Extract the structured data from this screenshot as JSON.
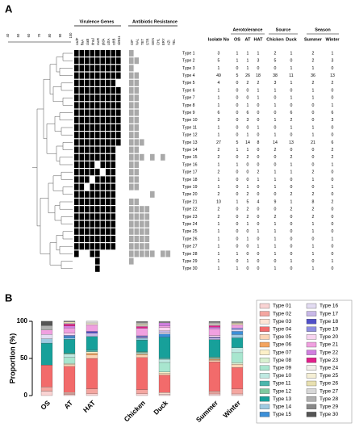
{
  "panel_a": {
    "label": "A",
    "virulence_title": "Virulence Genes",
    "resistance_title": "Antibiotic Resistance",
    "dendrogram_scale": [
      40,
      50,
      60,
      70,
      80,
      90,
      100
    ],
    "genes": [
      "cadF",
      "flaA",
      "ciaB",
      "dnaJ",
      "racR",
      "pldA",
      "cdtA",
      "cdtB",
      "virB11"
    ],
    "antibiotics": [
      "CIP",
      "NAL",
      "TET",
      "STR",
      "GEN",
      "CHL",
      "ERY",
      "AZI",
      "TEL"
    ],
    "types": [
      "Type 1",
      "Type 2",
      "Type 3",
      "Type 4",
      "Type 5",
      "Type 6",
      "Type 7",
      "Type 8",
      "Type 9",
      "Type 10",
      "Type 11",
      "Type 12",
      "Type 13",
      "Type 14",
      "Type 15",
      "Type 16",
      "Type 17",
      "Type 18",
      "Type 19",
      "Type 20",
      "Type 21",
      "Type 22",
      "Type 23",
      "Type 24",
      "Type 25",
      "Type 26",
      "Type 27",
      "Type 28",
      "Type 29",
      "Type 30"
    ],
    "virulence": [
      [
        1,
        1,
        1,
        1,
        1,
        1,
        1,
        1,
        1
      ],
      [
        1,
        1,
        1,
        1,
        1,
        1,
        1,
        1,
        1
      ],
      [
        1,
        1,
        1,
        1,
        1,
        1,
        1,
        1,
        1
      ],
      [
        1,
        1,
        1,
        1,
        1,
        1,
        1,
        1,
        1
      ],
      [
        1,
        1,
        1,
        1,
        1,
        1,
        1,
        1,
        0
      ],
      [
        1,
        1,
        1,
        1,
        1,
        1,
        1,
        1,
        1
      ],
      [
        1,
        1,
        1,
        1,
        1,
        1,
        1,
        1,
        1
      ],
      [
        1,
        1,
        1,
        1,
        1,
        1,
        1,
        1,
        1
      ],
      [
        1,
        1,
        1,
        1,
        1,
        1,
        1,
        1,
        1
      ],
      [
        1,
        1,
        1,
        1,
        1,
        1,
        1,
        1,
        1
      ],
      [
        1,
        1,
        1,
        1,
        1,
        1,
        1,
        1,
        1
      ],
      [
        1,
        1,
        1,
        1,
        1,
        1,
        1,
        1,
        1
      ],
      [
        1,
        1,
        1,
        1,
        1,
        1,
        1,
        1,
        1
      ],
      [
        1,
        1,
        1,
        1,
        1,
        1,
        1,
        1,
        0
      ],
      [
        1,
        1,
        1,
        1,
        1,
        1,
        1,
        1,
        0
      ],
      [
        1,
        1,
        1,
        1,
        0,
        1,
        1,
        1,
        0
      ],
      [
        1,
        1,
        1,
        1,
        1,
        0,
        1,
        1,
        0
      ],
      [
        1,
        1,
        1,
        0,
        1,
        1,
        1,
        1,
        0
      ],
      [
        1,
        1,
        0,
        1,
        1,
        1,
        1,
        1,
        0
      ],
      [
        1,
        1,
        1,
        1,
        1,
        1,
        1,
        1,
        0
      ],
      [
        1,
        1,
        1,
        1,
        1,
        1,
        1,
        1,
        0
      ],
      [
        1,
        1,
        1,
        1,
        1,
        1,
        1,
        1,
        0
      ],
      [
        1,
        1,
        1,
        1,
        1,
        1,
        1,
        1,
        0
      ],
      [
        1,
        1,
        1,
        1,
        1,
        1,
        1,
        1,
        0
      ],
      [
        1,
        1,
        1,
        1,
        1,
        1,
        1,
        1,
        0
      ],
      [
        1,
        1,
        1,
        1,
        1,
        1,
        1,
        1,
        0
      ],
      [
        1,
        1,
        1,
        1,
        1,
        1,
        1,
        1,
        0
      ],
      [
        1,
        0,
        0,
        1,
        1,
        0,
        0,
        0,
        0
      ],
      [
        0,
        0,
        0,
        0,
        1,
        0,
        0,
        0,
        0
      ],
      [
        0,
        0,
        0,
        0,
        1,
        0,
        0,
        0,
        0
      ]
    ],
    "resistance": [
      [
        1,
        0,
        0,
        0,
        0,
        0,
        0,
        0,
        0
      ],
      [
        1,
        1,
        0,
        0,
        0,
        0,
        0,
        0,
        0
      ],
      [
        1,
        0,
        0,
        0,
        0,
        0,
        0,
        0,
        0
      ],
      [
        1,
        1,
        0,
        0,
        0,
        0,
        0,
        0,
        0
      ],
      [
        1,
        1,
        0,
        0,
        0,
        0,
        0,
        0,
        0
      ],
      [
        1,
        1,
        0,
        0,
        0,
        0,
        0,
        0,
        0
      ],
      [
        1,
        1,
        0,
        0,
        0,
        0,
        0,
        0,
        0
      ],
      [
        1,
        1,
        0,
        0,
        0,
        0,
        0,
        0,
        0
      ],
      [
        1,
        1,
        0,
        0,
        0,
        0,
        0,
        0,
        0
      ],
      [
        1,
        1,
        0,
        0,
        0,
        0,
        0,
        0,
        0
      ],
      [
        1,
        1,
        0,
        0,
        0,
        0,
        0,
        0,
        0
      ],
      [
        1,
        1,
        0,
        0,
        0,
        0,
        0,
        0,
        0
      ],
      [
        1,
        1,
        1,
        0,
        0,
        0,
        0,
        0,
        0
      ],
      [
        1,
        1,
        0,
        0,
        0,
        0,
        0,
        0,
        0
      ],
      [
        1,
        1,
        1,
        0,
        1,
        0,
        1,
        0,
        0
      ],
      [
        1,
        1,
        0,
        0,
        0,
        0,
        0,
        0,
        0
      ],
      [
        1,
        1,
        0,
        0,
        0,
        0,
        0,
        0,
        0
      ],
      [
        1,
        1,
        0,
        0,
        0,
        0,
        0,
        0,
        0
      ],
      [
        1,
        1,
        0,
        0,
        0,
        0,
        0,
        0,
        0
      ],
      [
        0,
        0,
        0,
        0,
        1,
        0,
        0,
        0,
        0
      ],
      [
        1,
        1,
        0,
        0,
        0,
        0,
        0,
        0,
        0
      ],
      [
        1,
        1,
        1,
        1,
        0,
        0,
        0,
        0,
        0
      ],
      [
        1,
        1,
        1,
        1,
        0,
        0,
        0,
        0,
        0
      ],
      [
        1,
        1,
        1,
        1,
        0,
        0,
        0,
        0,
        0
      ],
      [
        1,
        1,
        1,
        1,
        0,
        0,
        0,
        0,
        0
      ],
      [
        1,
        1,
        1,
        1,
        0,
        0,
        0,
        0,
        0
      ],
      [
        1,
        1,
        1,
        1,
        0,
        0,
        0,
        0,
        0
      ],
      [
        1,
        1,
        1,
        1,
        1,
        0,
        1,
        1,
        0
      ],
      [
        1,
        0,
        0,
        0,
        0,
        0,
        0,
        0,
        0
      ],
      [
        0,
        0,
        0,
        0,
        0,
        0,
        0,
        0,
        0
      ]
    ],
    "table": {
      "columns": [
        "Isolate No",
        "OS",
        "AT",
        "HAT",
        "Chicken",
        "Duck",
        "Summer",
        "Winter"
      ],
      "groups": [
        "Aerotolerance",
        "Source",
        "Season"
      ],
      "rows": [
        [
          3,
          1,
          1,
          1,
          2,
          1,
          2,
          1
        ],
        [
          5,
          1,
          1,
          3,
          5,
          0,
          2,
          3
        ],
        [
          1,
          0,
          1,
          0,
          0,
          1,
          1,
          0
        ],
        [
          49,
          5,
          26,
          18,
          38,
          11,
          36,
          13
        ],
        [
          4,
          0,
          2,
          2,
          3,
          1,
          2,
          2
        ],
        [
          1,
          0,
          0,
          1,
          1,
          0,
          1,
          0
        ],
        [
          1,
          0,
          0,
          1,
          0,
          1,
          1,
          0
        ],
        [
          1,
          0,
          1,
          0,
          1,
          0,
          0,
          1
        ],
        [
          6,
          0,
          6,
          0,
          0,
          6,
          0,
          6
        ],
        [
          3,
          0,
          3,
          0,
          1,
          2,
          0,
          3
        ],
        [
          1,
          0,
          0,
          1,
          0,
          1,
          1,
          0
        ],
        [
          1,
          0,
          1,
          0,
          1,
          0,
          1,
          0
        ],
        [
          27,
          5,
          14,
          8,
          14,
          13,
          21,
          6
        ],
        [
          2,
          1,
          1,
          0,
          2,
          0,
          0,
          2
        ],
        [
          2,
          0,
          2,
          0,
          0,
          2,
          0,
          2
        ],
        [
          1,
          1,
          0,
          0,
          0,
          1,
          0,
          1
        ],
        [
          2,
          0,
          0,
          2,
          1,
          1,
          2,
          0
        ],
        [
          1,
          0,
          0,
          1,
          1,
          0,
          1,
          0
        ],
        [
          1,
          0,
          1,
          0,
          1,
          0,
          0,
          1
        ],
        [
          2,
          0,
          2,
          0,
          0,
          2,
          2,
          0
        ],
        [
          10,
          1,
          5,
          4,
          9,
          1,
          8,
          2
        ],
        [
          2,
          0,
          2,
          0,
          0,
          2,
          2,
          0
        ],
        [
          2,
          0,
          2,
          0,
          2,
          0,
          2,
          0
        ],
        [
          1,
          0,
          1,
          0,
          1,
          0,
          1,
          0
        ],
        [
          1,
          0,
          0,
          1,
          1,
          0,
          1,
          0
        ],
        [
          1,
          0,
          1,
          0,
          1,
          0,
          0,
          1
        ],
        [
          1,
          0,
          0,
          1,
          1,
          0,
          1,
          0
        ],
        [
          1,
          1,
          0,
          0,
          1,
          0,
          1,
          0
        ],
        [
          1,
          0,
          1,
          0,
          0,
          1,
          0,
          1
        ],
        [
          1,
          1,
          0,
          0,
          1,
          0,
          1,
          0
        ]
      ]
    }
  },
  "chart_data": {
    "type": "bar",
    "stacked": true,
    "label": "B",
    "ylabel": "Proportion (%)",
    "categories": [
      "OS",
      "AT",
      "HAT",
      "Chicken",
      "Duck",
      "Summer",
      "Winter"
    ],
    "ylim": [
      0,
      100
    ],
    "yticks": [
      0,
      50,
      100
    ],
    "series": [
      {
        "name": "Type 01",
        "color": "#f9d3d3",
        "values": [
          5.9,
          1.4,
          2.3,
          2.3,
          2.1,
          2.2,
          2.2
        ]
      },
      {
        "name": "Type 02",
        "color": "#f4a6a0",
        "values": [
          5.9,
          1.4,
          6.8,
          5.7,
          0,
          2.2,
          6.7
        ]
      },
      {
        "name": "Type 03",
        "color": "#fde4d4",
        "values": [
          0,
          1.4,
          0,
          0,
          2.1,
          1.1,
          0
        ]
      },
      {
        "name": "Type 04",
        "color": "#f26b6b",
        "values": [
          29.4,
          35.1,
          40.9,
          43.2,
          23.4,
          40.0,
          28.9
        ]
      },
      {
        "name": "Type 05",
        "color": "#fbd5b5",
        "values": [
          0,
          2.7,
          4.5,
          3.4,
          2.1,
          2.2,
          4.4
        ]
      },
      {
        "name": "Type 06",
        "color": "#f4a460",
        "values": [
          0,
          0,
          2.3,
          1.1,
          0,
          1.1,
          0
        ]
      },
      {
        "name": "Type 07",
        "color": "#fdf0c8",
        "values": [
          0,
          0,
          2.3,
          0,
          2.1,
          1.1,
          0
        ]
      },
      {
        "name": "Type 08",
        "color": "#d8f0d0",
        "values": [
          0,
          1.4,
          0,
          1.1,
          0,
          0,
          2.2
        ]
      },
      {
        "name": "Type 09",
        "color": "#a8e6cf",
        "values": [
          0,
          8.1,
          0,
          0,
          12.8,
          0,
          13.3
        ]
      },
      {
        "name": "Type 10",
        "color": "#bfe9e2",
        "values": [
          0,
          4.1,
          0,
          1.1,
          4.3,
          0,
          6.7
        ]
      },
      {
        "name": "Type 11",
        "color": "#4db6ac",
        "values": [
          0,
          0,
          2.3,
          0,
          2.1,
          1.1,
          0
        ]
      },
      {
        "name": "Type 12",
        "color": "#7fc9a0",
        "values": [
          0,
          1.4,
          0,
          1.1,
          0,
          1.1,
          0
        ]
      },
      {
        "name": "Type 13",
        "color": "#17a09a",
        "values": [
          29.4,
          18.9,
          18.2,
          15.9,
          27.7,
          23.3,
          13.3
        ]
      },
      {
        "name": "Type 14",
        "color": "#9ecae1",
        "values": [
          5.9,
          1.4,
          0,
          2.3,
          0,
          0,
          4.4
        ]
      },
      {
        "name": "Type 15",
        "color": "#3c8fd8",
        "values": [
          0,
          2.7,
          0,
          0,
          4.3,
          0,
          4.4
        ]
      },
      {
        "name": "Type 16",
        "color": "#e3dcf2",
        "values": [
          5.9,
          0,
          0,
          0,
          2.1,
          0,
          2.2
        ]
      },
      {
        "name": "Type 17",
        "color": "#c8b8e8",
        "values": [
          0,
          0,
          4.5,
          1.1,
          2.1,
          2.2,
          0
        ]
      },
      {
        "name": "Type 18",
        "color": "#5050c8",
        "values": [
          0,
          0,
          2.3,
          1.1,
          0,
          1.1,
          0
        ]
      },
      {
        "name": "Type 19",
        "color": "#8f8fe0",
        "values": [
          0,
          1.4,
          0,
          1.1,
          0,
          0,
          2.2
        ]
      },
      {
        "name": "Type 20",
        "color": "#f8d4f0",
        "values": [
          0,
          2.7,
          0,
          0,
          4.3,
          2.2,
          0
        ]
      },
      {
        "name": "Type 21",
        "color": "#f0a0e0",
        "values": [
          5.9,
          6.8,
          9.1,
          10.2,
          2.1,
          8.9,
          4.4
        ]
      },
      {
        "name": "Type 22",
        "color": "#d080e0",
        "values": [
          0,
          2.7,
          0,
          0,
          4.3,
          2.2,
          0
        ]
      },
      {
        "name": "Type 23",
        "color": "#e0208a",
        "values": [
          0,
          2.7,
          0,
          2.3,
          0,
          2.2,
          0
        ]
      },
      {
        "name": "Type 24",
        "color": "#f2efea",
        "values": [
          0,
          1.4,
          0,
          1.1,
          0,
          1.1,
          0
        ]
      },
      {
        "name": "Type 25",
        "color": "#f5efd5",
        "values": [
          0,
          0,
          2.3,
          1.1,
          0,
          1.1,
          0
        ]
      },
      {
        "name": "Type 26",
        "color": "#e8e0b0",
        "values": [
          0,
          1.4,
          0,
          1.1,
          0,
          0,
          2.2
        ]
      },
      {
        "name": "Type 27",
        "color": "#d8d8d8",
        "values": [
          0,
          0,
          2.3,
          1.1,
          0,
          1.1,
          0
        ]
      },
      {
        "name": "Type 28",
        "color": "#b0b0b0",
        "values": [
          5.9,
          0,
          0,
          1.1,
          0,
          1.1,
          0
        ]
      },
      {
        "name": "Type 29",
        "color": "#888888",
        "values": [
          0,
          1.4,
          0,
          0,
          2.1,
          0,
          2.2
        ]
      },
      {
        "name": "Type 30",
        "color": "#555555",
        "values": [
          5.9,
          0,
          0,
          1.1,
          0,
          1.1,
          0
        ]
      }
    ]
  }
}
